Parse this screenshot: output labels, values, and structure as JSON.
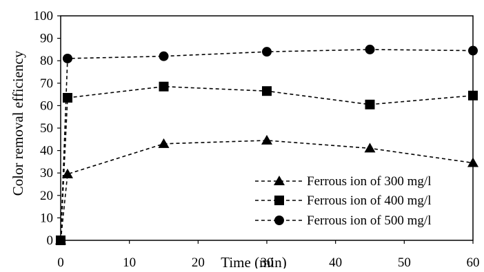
{
  "chart_data": {
    "type": "line",
    "title": "",
    "xlabel": "Time (min)",
    "ylabel": "Color removal efficiency",
    "xlim": [
      0,
      60
    ],
    "ylim": [
      0,
      100
    ],
    "x_ticks": [
      "0",
      "10",
      "20",
      "30",
      "40",
      "50",
      "60"
    ],
    "y_ticks": [
      "0",
      "10",
      "20",
      "30",
      "40",
      "50",
      "60",
      "70",
      "80",
      "90",
      "100"
    ],
    "grid": false,
    "legend_position": "bottom-right",
    "line_style": "dashed",
    "line_color": "#000000",
    "x": [
      0,
      1,
      15,
      30,
      45,
      60
    ],
    "series": [
      {
        "name": "Ferrous ion of 300 mg/l",
        "marker": "triangle",
        "values": [
          0,
          29.5,
          43,
          44.5,
          41,
          34.5
        ]
      },
      {
        "name": "Ferrous ion of 400 mg/l",
        "marker": "square",
        "values": [
          0,
          63.5,
          68.5,
          66.5,
          60.5,
          64.5
        ]
      },
      {
        "name": "Ferrous ion of 500 mg/l",
        "marker": "circle",
        "values": [
          0,
          81,
          82,
          84,
          85,
          84.5
        ]
      }
    ]
  }
}
